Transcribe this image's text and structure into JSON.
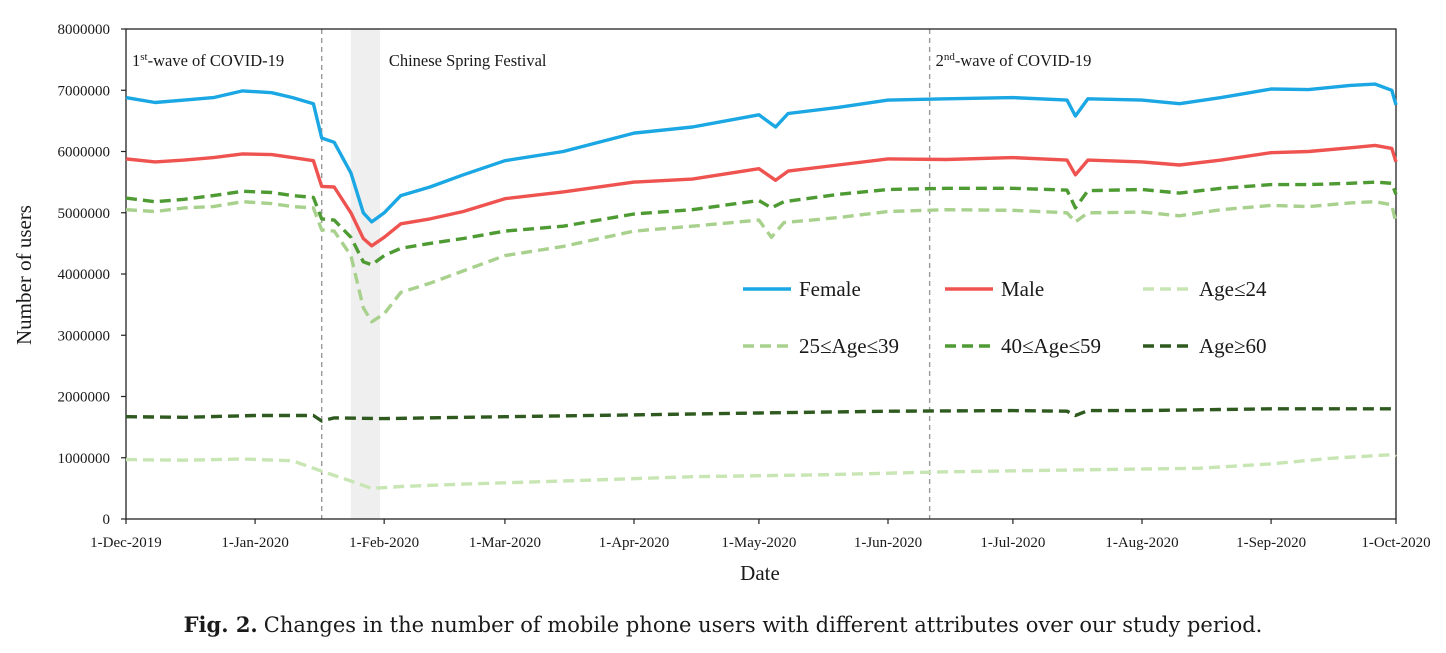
{
  "chart_data": {
    "type": "line",
    "xlabel": "Date",
    "ylabel": "Number of users",
    "ylim": [
      0,
      8000000
    ],
    "y_ticks": [
      0,
      1000000,
      2000000,
      3000000,
      4000000,
      5000000,
      6000000,
      7000000,
      8000000
    ],
    "y_tick_labels": [
      "0",
      "1000000",
      "2000000",
      "3000000",
      "4000000",
      "5000000",
      "6000000",
      "7000000",
      "8000000"
    ],
    "xlim": [
      "2019-12-01",
      "2020-10-01"
    ],
    "x_ticks": [
      "2019-12-01",
      "2020-01-01",
      "2020-02-01",
      "2020-03-01",
      "2020-04-01",
      "2020-05-01",
      "2020-06-01",
      "2020-07-01",
      "2020-08-01",
      "2020-09-01",
      "2020-10-01"
    ],
    "x_tick_labels": [
      "1-Dec-2019",
      "1-Jan-2020",
      "1-Feb-2020",
      "1-Mar-2020",
      "1-Apr-2020",
      "1-May-2020",
      "1-Jun-2020",
      "1-Jul-2020",
      "1-Aug-2020",
      "1-Sep-2020",
      "1-Oct-2020"
    ],
    "grid": false,
    "legend_position": "center-right",
    "annotations": [
      {
        "type": "vline",
        "date": "2020-01-17",
        "label_base": "1",
        "label_sup": "st",
        "label_rest": "-wave of COVID-19"
      },
      {
        "type": "band",
        "start": "2020-01-24",
        "end": "2020-01-31",
        "label": "Chinese Spring Festival"
      },
      {
        "type": "vline",
        "date": "2020-06-11",
        "label_base": "2",
        "label_sup": "nd",
        "label_rest": "-wave of COVID-19"
      }
    ],
    "series": [
      {
        "name": "Female",
        "color": "#1aa7e3",
        "dash": "solid",
        "points": [
          [
            "2019-12-01",
            6880000
          ],
          [
            "2019-12-08",
            6800000
          ],
          [
            "2019-12-15",
            6840000
          ],
          [
            "2019-12-22",
            6880000
          ],
          [
            "2019-12-29",
            6990000
          ],
          [
            "2020-01-05",
            6960000
          ],
          [
            "2020-01-10",
            6880000
          ],
          [
            "2020-01-15",
            6780000
          ],
          [
            "2020-01-17",
            6220000
          ],
          [
            "2020-01-20",
            6150000
          ],
          [
            "2020-01-24",
            5650000
          ],
          [
            "2020-01-27",
            5000000
          ],
          [
            "2020-01-29",
            4850000
          ],
          [
            "2020-02-01",
            5000000
          ],
          [
            "2020-02-05",
            5280000
          ],
          [
            "2020-02-12",
            5420000
          ],
          [
            "2020-02-20",
            5620000
          ],
          [
            "2020-03-01",
            5850000
          ],
          [
            "2020-03-15",
            6000000
          ],
          [
            "2020-04-01",
            6300000
          ],
          [
            "2020-04-15",
            6400000
          ],
          [
            "2020-05-01",
            6600000
          ],
          [
            "2020-05-05",
            6400000
          ],
          [
            "2020-05-08",
            6620000
          ],
          [
            "2020-05-20",
            6720000
          ],
          [
            "2020-06-01",
            6840000
          ],
          [
            "2020-06-15",
            6860000
          ],
          [
            "2020-07-01",
            6880000
          ],
          [
            "2020-07-14",
            6840000
          ],
          [
            "2020-07-16",
            6580000
          ],
          [
            "2020-07-19",
            6860000
          ],
          [
            "2020-08-01",
            6840000
          ],
          [
            "2020-08-10",
            6780000
          ],
          [
            "2020-08-20",
            6880000
          ],
          [
            "2020-09-01",
            7020000
          ],
          [
            "2020-09-10",
            7010000
          ],
          [
            "2020-09-20",
            7080000
          ],
          [
            "2020-09-26",
            7100000
          ],
          [
            "2020-09-30",
            7000000
          ],
          [
            "2020-10-01",
            6760000
          ]
        ]
      },
      {
        "name": "Male",
        "color": "#ef5350",
        "dash": "solid",
        "points": [
          [
            "2019-12-01",
            5880000
          ],
          [
            "2019-12-08",
            5830000
          ],
          [
            "2019-12-15",
            5860000
          ],
          [
            "2019-12-22",
            5900000
          ],
          [
            "2019-12-29",
            5960000
          ],
          [
            "2020-01-05",
            5950000
          ],
          [
            "2020-01-10",
            5900000
          ],
          [
            "2020-01-15",
            5850000
          ],
          [
            "2020-01-17",
            5430000
          ],
          [
            "2020-01-20",
            5420000
          ],
          [
            "2020-01-24",
            5000000
          ],
          [
            "2020-01-27",
            4580000
          ],
          [
            "2020-01-29",
            4460000
          ],
          [
            "2020-02-01",
            4600000
          ],
          [
            "2020-02-05",
            4820000
          ],
          [
            "2020-02-12",
            4900000
          ],
          [
            "2020-02-20",
            5020000
          ],
          [
            "2020-03-01",
            5230000
          ],
          [
            "2020-03-15",
            5340000
          ],
          [
            "2020-04-01",
            5500000
          ],
          [
            "2020-04-15",
            5550000
          ],
          [
            "2020-05-01",
            5720000
          ],
          [
            "2020-05-05",
            5530000
          ],
          [
            "2020-05-08",
            5680000
          ],
          [
            "2020-05-20",
            5780000
          ],
          [
            "2020-06-01",
            5880000
          ],
          [
            "2020-06-15",
            5870000
          ],
          [
            "2020-07-01",
            5900000
          ],
          [
            "2020-07-14",
            5860000
          ],
          [
            "2020-07-16",
            5620000
          ],
          [
            "2020-07-19",
            5860000
          ],
          [
            "2020-08-01",
            5830000
          ],
          [
            "2020-08-10",
            5780000
          ],
          [
            "2020-08-20",
            5860000
          ],
          [
            "2020-09-01",
            5980000
          ],
          [
            "2020-09-10",
            6000000
          ],
          [
            "2020-09-20",
            6060000
          ],
          [
            "2020-09-26",
            6100000
          ],
          [
            "2020-09-30",
            6050000
          ],
          [
            "2020-10-01",
            5830000
          ]
        ]
      },
      {
        "name": "Age≤24",
        "color": "#c8e6b4",
        "dash": "dashed",
        "points": [
          [
            "2019-12-01",
            970000
          ],
          [
            "2019-12-15",
            960000
          ],
          [
            "2019-12-29",
            980000
          ],
          [
            "2020-01-10",
            950000
          ],
          [
            "2020-01-17",
            780000
          ],
          [
            "2020-01-24",
            620000
          ],
          [
            "2020-01-29",
            500000
          ],
          [
            "2020-02-05",
            530000
          ],
          [
            "2020-02-20",
            570000
          ],
          [
            "2020-03-15",
            620000
          ],
          [
            "2020-04-15",
            690000
          ],
          [
            "2020-05-15",
            720000
          ],
          [
            "2020-06-15",
            770000
          ],
          [
            "2020-07-15",
            800000
          ],
          [
            "2020-08-15",
            830000
          ],
          [
            "2020-09-01",
            900000
          ],
          [
            "2020-09-15",
            990000
          ],
          [
            "2020-09-30",
            1050000
          ],
          [
            "2020-10-01",
            1020000
          ]
        ]
      },
      {
        "name": "25≤Age≤39",
        "color": "#a9d18e",
        "dash": "dashed",
        "points": [
          [
            "2019-12-01",
            5050000
          ],
          [
            "2019-12-08",
            5020000
          ],
          [
            "2019-12-15",
            5080000
          ],
          [
            "2019-12-22",
            5100000
          ],
          [
            "2019-12-29",
            5180000
          ],
          [
            "2020-01-05",
            5150000
          ],
          [
            "2020-01-10",
            5100000
          ],
          [
            "2020-01-15",
            5080000
          ],
          [
            "2020-01-17",
            4720000
          ],
          [
            "2020-01-20",
            4700000
          ],
          [
            "2020-01-24",
            4300000
          ],
          [
            "2020-01-27",
            3450000
          ],
          [
            "2020-01-29",
            3220000
          ],
          [
            "2020-02-01",
            3350000
          ],
          [
            "2020-02-05",
            3700000
          ],
          [
            "2020-02-12",
            3850000
          ],
          [
            "2020-02-20",
            4050000
          ],
          [
            "2020-03-01",
            4300000
          ],
          [
            "2020-03-15",
            4450000
          ],
          [
            "2020-04-01",
            4700000
          ],
          [
            "2020-04-15",
            4780000
          ],
          [
            "2020-05-01",
            4880000
          ],
          [
            "2020-05-04",
            4600000
          ],
          [
            "2020-05-07",
            4840000
          ],
          [
            "2020-05-20",
            4920000
          ],
          [
            "2020-06-01",
            5020000
          ],
          [
            "2020-06-15",
            5050000
          ],
          [
            "2020-07-01",
            5040000
          ],
          [
            "2020-07-14",
            5000000
          ],
          [
            "2020-07-16",
            4850000
          ],
          [
            "2020-07-19",
            5000000
          ],
          [
            "2020-08-01",
            5010000
          ],
          [
            "2020-08-10",
            4950000
          ],
          [
            "2020-08-20",
            5050000
          ],
          [
            "2020-09-01",
            5120000
          ],
          [
            "2020-09-10",
            5100000
          ],
          [
            "2020-09-20",
            5160000
          ],
          [
            "2020-09-26",
            5180000
          ],
          [
            "2020-09-30",
            5130000
          ],
          [
            "2020-10-01",
            4830000
          ]
        ]
      },
      {
        "name": "40≤Age≤59",
        "color": "#4e9a33",
        "dash": "dashed",
        "points": [
          [
            "2019-12-01",
            5240000
          ],
          [
            "2019-12-08",
            5180000
          ],
          [
            "2019-12-15",
            5220000
          ],
          [
            "2019-12-22",
            5280000
          ],
          [
            "2019-12-29",
            5350000
          ],
          [
            "2020-01-05",
            5330000
          ],
          [
            "2020-01-10",
            5280000
          ],
          [
            "2020-01-15",
            5250000
          ],
          [
            "2020-01-17",
            4900000
          ],
          [
            "2020-01-20",
            4880000
          ],
          [
            "2020-01-24",
            4600000
          ],
          [
            "2020-01-27",
            4200000
          ],
          [
            "2020-01-29",
            4150000
          ],
          [
            "2020-02-01",
            4300000
          ],
          [
            "2020-02-05",
            4420000
          ],
          [
            "2020-02-12",
            4500000
          ],
          [
            "2020-02-20",
            4580000
          ],
          [
            "2020-03-01",
            4700000
          ],
          [
            "2020-03-15",
            4780000
          ],
          [
            "2020-04-01",
            4980000
          ],
          [
            "2020-04-15",
            5050000
          ],
          [
            "2020-05-01",
            5200000
          ],
          [
            "2020-05-04",
            5080000
          ],
          [
            "2020-05-07",
            5180000
          ],
          [
            "2020-05-20",
            5300000
          ],
          [
            "2020-06-01",
            5380000
          ],
          [
            "2020-06-15",
            5400000
          ],
          [
            "2020-07-01",
            5400000
          ],
          [
            "2020-07-14",
            5370000
          ],
          [
            "2020-07-16",
            5080000
          ],
          [
            "2020-07-19",
            5360000
          ],
          [
            "2020-08-01",
            5380000
          ],
          [
            "2020-08-10",
            5320000
          ],
          [
            "2020-08-20",
            5400000
          ],
          [
            "2020-09-01",
            5460000
          ],
          [
            "2020-09-10",
            5460000
          ],
          [
            "2020-09-20",
            5480000
          ],
          [
            "2020-09-26",
            5500000
          ],
          [
            "2020-09-30",
            5480000
          ],
          [
            "2020-10-01",
            5300000
          ]
        ]
      },
      {
        "name": "Age≥60",
        "color": "#2f5a1f",
        "dash": "dashed",
        "points": [
          [
            "2019-12-01",
            1670000
          ],
          [
            "2019-12-15",
            1660000
          ],
          [
            "2020-01-01",
            1690000
          ],
          [
            "2020-01-15",
            1690000
          ],
          [
            "2020-01-17",
            1600000
          ],
          [
            "2020-01-20",
            1650000
          ],
          [
            "2020-02-01",
            1640000
          ],
          [
            "2020-03-01",
            1670000
          ],
          [
            "2020-04-01",
            1700000
          ],
          [
            "2020-05-01",
            1730000
          ],
          [
            "2020-06-01",
            1760000
          ],
          [
            "2020-07-01",
            1770000
          ],
          [
            "2020-07-14",
            1760000
          ],
          [
            "2020-07-16",
            1690000
          ],
          [
            "2020-07-19",
            1770000
          ],
          [
            "2020-08-01",
            1770000
          ],
          [
            "2020-09-01",
            1800000
          ],
          [
            "2020-10-01",
            1800000
          ]
        ]
      }
    ]
  },
  "caption": {
    "label": "Fig. 2.",
    "text": "Changes in the number of mobile phone users with different attributes over our study period."
  }
}
